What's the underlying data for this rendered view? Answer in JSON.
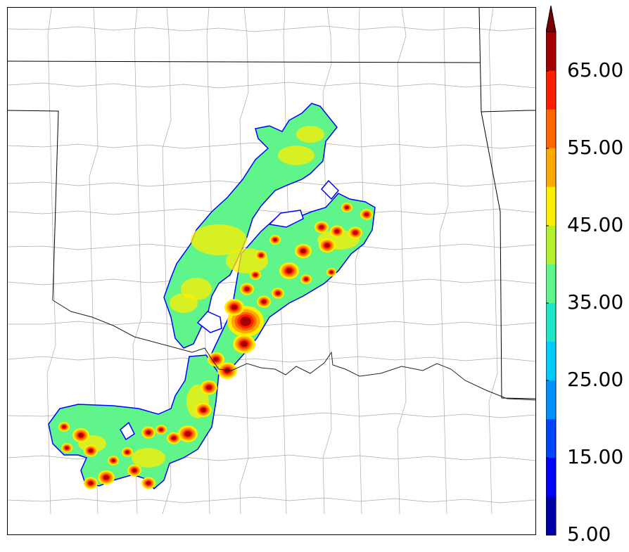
{
  "colorbar": {
    "tick_labels": [
      "5.00",
      "15.00",
      "25.00",
      "35.00",
      "45.00",
      "55.00",
      "65.00"
    ],
    "levels": [
      5,
      10,
      15,
      20,
      25,
      30,
      35,
      40,
      45,
      50,
      55,
      60,
      65,
      70
    ],
    "colors": [
      "#0000a8",
      "#0000ff",
      "#0044ff",
      "#0090ff",
      "#00ccff",
      "#1ee6c8",
      "#5ff58a",
      "#b4f02d",
      "#ffee00",
      "#ffa800",
      "#ff6600",
      "#ff1e00",
      "#a50000"
    ],
    "extend": "max",
    "extend_color": "#7a0000"
  },
  "map": {
    "background": "#ffffff",
    "state_line_color": "#000000",
    "county_line_color": "#999999",
    "river_color": "#333333"
  }
}
